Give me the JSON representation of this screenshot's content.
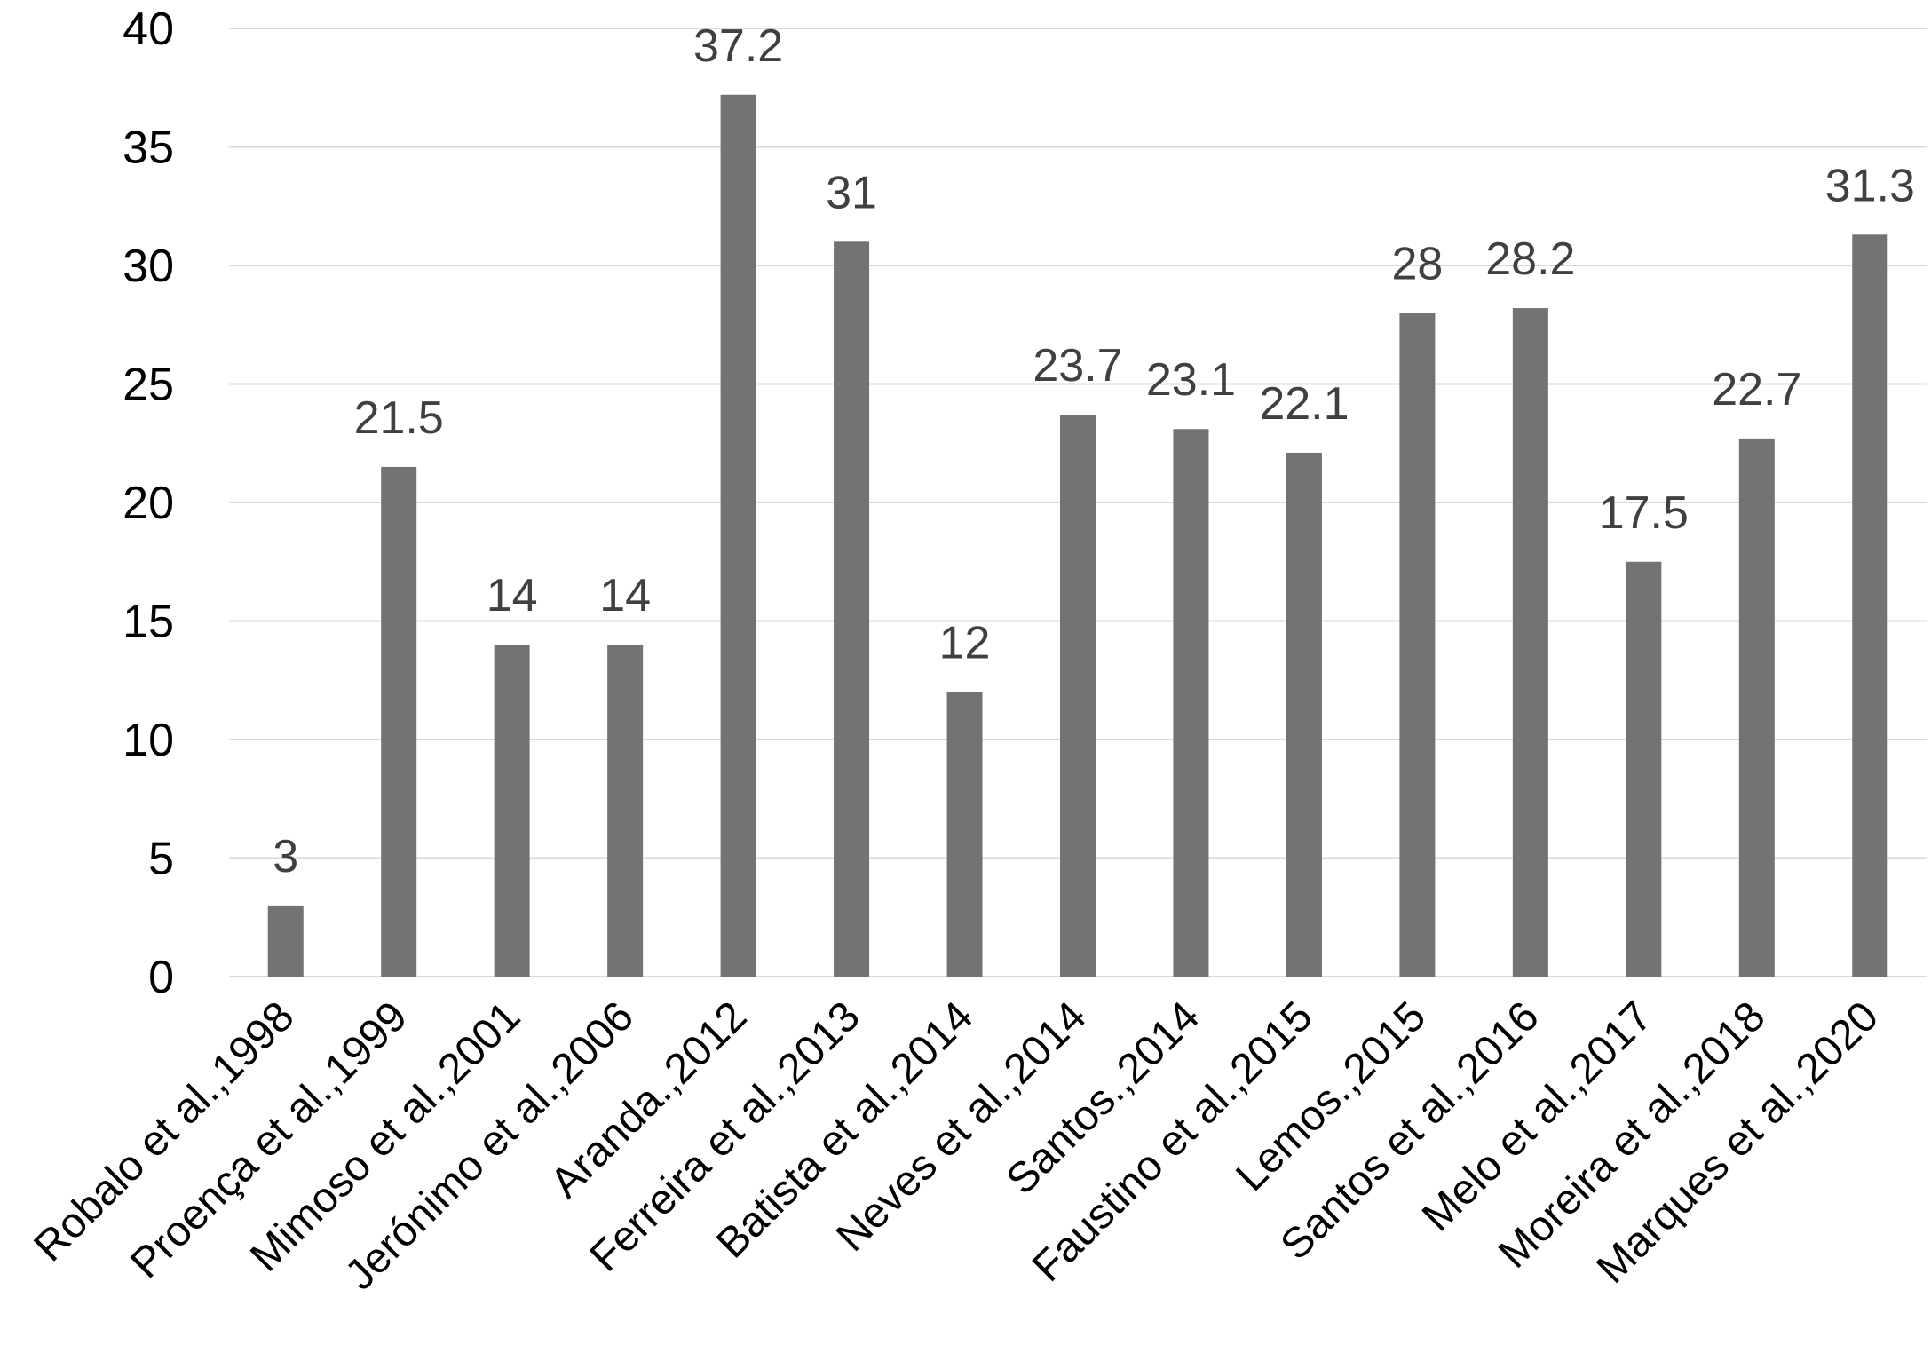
{
  "chart_data": {
    "type": "bar",
    "title": "",
    "xlabel": "",
    "ylabel": "",
    "categories": [
      "Robalo et al.,1998",
      "Proença et al.,1999",
      "Mimoso et al.,2001",
      "Jerónimo et al.,2006",
      "Aranda.,2012",
      "Ferreira et al.,2013",
      "Batista et al.,2014",
      "Neves et al.,2014",
      "Santos.,2014",
      "Faustino et al.,2015",
      "Lemos.,2015",
      "Santos et al.,2016",
      "Melo et al.,2017",
      "Moreira et al.,2018",
      "Marques et al.,2020"
    ],
    "values": [
      3,
      21.5,
      14,
      14,
      37.2,
      31,
      12,
      23.7,
      23.1,
      22.1,
      28,
      28.2,
      17.5,
      22.7,
      31.3
    ],
    "data_labels": [
      "3",
      "21.5",
      "14",
      "14",
      "37.2",
      "31",
      "12",
      "23.7",
      "23.1",
      "22.1",
      "28",
      "28.2",
      "17.5",
      "22.7",
      "31.3"
    ],
    "ylim": [
      0,
      40
    ],
    "yticks": [
      "0",
      "5",
      "10",
      "15",
      "20",
      "25",
      "30",
      "35",
      "40"
    ],
    "grid": true,
    "legend": "none",
    "colors": {
      "bar": "#737373",
      "grid": "#d9d9d9",
      "axis": "#d9d9d9",
      "tick_text": "#000000",
      "data_label_text": "#404040"
    }
  }
}
